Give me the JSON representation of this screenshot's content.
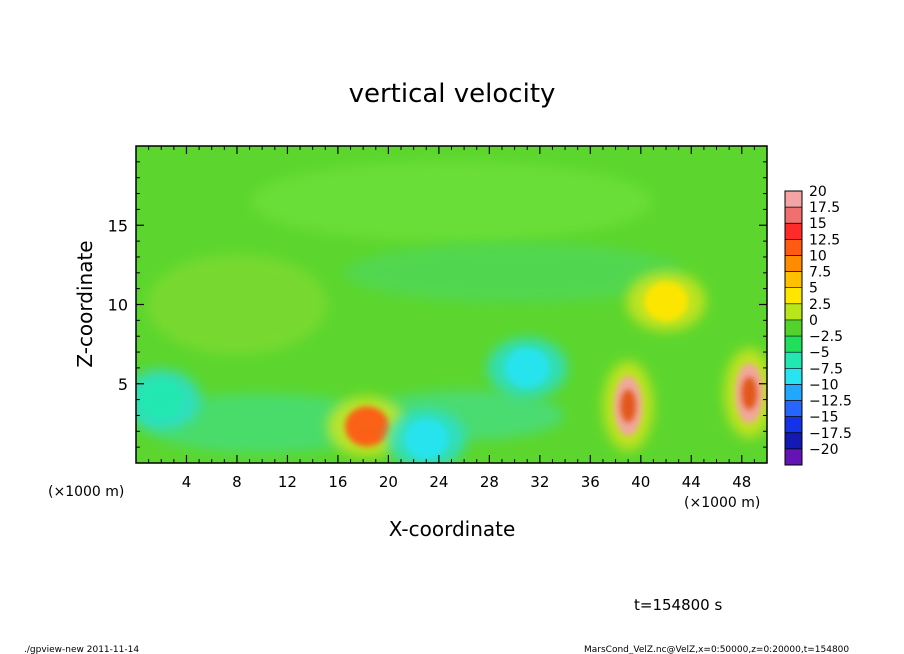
{
  "chart_data": {
    "type": "heatmap",
    "title": "vertical velocity",
    "xlabel": "X-coordinate",
    "ylabel": "Z-coordinate",
    "x_unit_left": "(×1000 m)",
    "x_unit_right": "(×1000 m)",
    "xlim": [
      0,
      50
    ],
    "ylim": [
      0,
      20
    ],
    "x_ticks": [
      4,
      8,
      12,
      16,
      20,
      24,
      28,
      32,
      36,
      40,
      44,
      48
    ],
    "x_tick_labels": [
      "4",
      "8",
      "12",
      "16",
      "20",
      "24",
      "28",
      "32",
      "36",
      "40",
      "44",
      "48"
    ],
    "y_ticks": [
      5,
      10,
      15
    ],
    "y_tick_labels": [
      "5",
      "10",
      "15"
    ],
    "colorbar": {
      "levels": [
        20,
        17.5,
        15,
        12.5,
        10,
        7.5,
        5,
        2.5,
        0,
        -2.5,
        -5,
        -7.5,
        -10,
        -12.5,
        -15,
        -17.5,
        -20
      ],
      "labels": [
        "20",
        "17.5",
        "15",
        "12.5",
        "10",
        "7.5",
        "5",
        "2.5",
        "0",
        "−2.5",
        "−5",
        "−7.5",
        "−10",
        "−12.5",
        "−15",
        "−17.5",
        "−20"
      ],
      "colors": [
        "#f4a4a4",
        "#f07070",
        "#ff2a2a",
        "#ff5a14",
        "#ff8c00",
        "#ffc000",
        "#ffe600",
        "#b8e618",
        "#52d22a",
        "#20e05a",
        "#20e8b0",
        "#28e4f0",
        "#20a8ff",
        "#2864ff",
        "#1432e8",
        "#1418b4",
        "#6414b4"
      ]
    },
    "features": [
      {
        "x": 39,
        "z": 3.6,
        "w": 0.9,
        "kind": "updraft"
      },
      {
        "x": 48.6,
        "z": 4.4,
        "w": 0.9,
        "kind": "updraft"
      },
      {
        "x": 18.3,
        "z": 2.3,
        "w": 0.55,
        "kind": "updraft"
      },
      {
        "x": 42,
        "z": 10.2,
        "w": 0.25,
        "kind": "updraft"
      },
      {
        "x": 31,
        "z": 6,
        "w": -0.45,
        "kind": "downdraft"
      },
      {
        "x": 23,
        "z": 1.5,
        "w": -0.4,
        "kind": "downdraft"
      },
      {
        "x": 2,
        "z": 4,
        "w": -0.25,
        "kind": "downdraft"
      }
    ],
    "time_label": "t=154800 s"
  },
  "footer": {
    "left": "./gpview-new  2011-11-14",
    "right": "MarsCond_VelZ.nc@VelZ,x=0:50000,z=0:20000,t=154800"
  }
}
